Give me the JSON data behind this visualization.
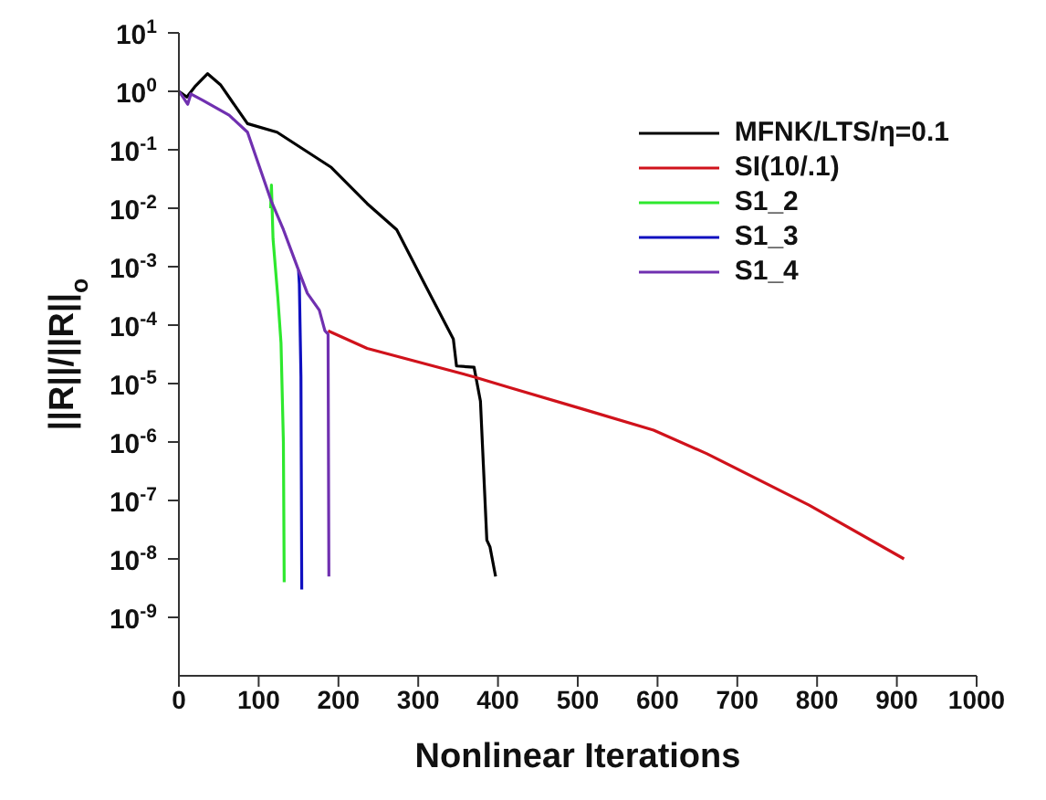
{
  "chart_data": {
    "type": "line",
    "xlabel": "Nonlinear Iterations",
    "ylabel": "||R||/||R||$_{o}$",
    "log": "y",
    "grid": false,
    "legend": "top right",
    "marker": "none",
    "line_style": "solid",
    "xlim": [
      0,
      1000
    ],
    "xticks": [
      0,
      100,
      200,
      300,
      400,
      500,
      600,
      700,
      800,
      900,
      1000
    ],
    "ylim": [
      1e-10,
      10
    ],
    "yticks": [
      {
        "value": 10,
        "label": "10$^{1}$"
      },
      {
        "value": 1,
        "label": "10$^{0}$"
      },
      {
        "value": 0.1,
        "label": "10$^{-1}$"
      },
      {
        "value": 0.01,
        "label": "10$^{-2}$"
      },
      {
        "value": 0.001,
        "label": "10$^{-3}$"
      },
      {
        "value": 0.0001,
        "label": "10$^{-4}$"
      },
      {
        "value": 1e-05,
        "label": "10$^{-5}$"
      },
      {
        "value": 1e-06,
        "label": "10$^{-6}$"
      },
      {
        "value": 1e-07,
        "label": "10$^{-7}$"
      },
      {
        "value": 1e-08,
        "label": "10$^{-8}$"
      },
      {
        "value": 1e-09,
        "label": "10$^{-9}$"
      }
    ],
    "series": [
      {
        "name": "MFNK/LTS/η=0.1",
        "color": "#000000",
        "x": [
          0,
          10,
          20,
          36,
          52,
          86,
          123,
          191,
          236,
          273,
          310,
          344,
          348,
          370,
          378,
          386,
          390,
          397
        ],
        "values": [
          1,
          0.8,
          1.2,
          2,
          1.3,
          0.28,
          0.2,
          0.05,
          0.012,
          0.0043,
          0.00045,
          5.8e-05,
          2e-05,
          1.9e-05,
          5e-06,
          2.1e-08,
          1.6e-08,
          5e-09
        ]
      },
      {
        "name": "SI(10/.1)",
        "color": "#d0121b",
        "x": [
          187,
          236,
          370,
          415,
          505,
          595,
          662,
          790,
          909
        ],
        "values": [
          8e-05,
          4e-05,
          1.3e-05,
          8.5e-06,
          3.7e-06,
          1.6e-06,
          6.3e-07,
          8.3e-08,
          1e-08
        ]
      },
      {
        "name": "S1_2",
        "color": "#2ee82e",
        "x": [
          115,
          116,
          118,
          124,
          128,
          131,
          132
        ],
        "values": [
          0.01,
          0.025,
          0.003,
          0.0003,
          5e-05,
          1e-06,
          4e-09
        ]
      },
      {
        "name": "S1_3",
        "color": "#1010c0",
        "x": [
          150,
          151,
          153,
          154
        ],
        "values": [
          0.00087,
          0.0005,
          1.3e-05,
          3e-09
        ]
      },
      {
        "name": "S1_4",
        "color": "#7030b0",
        "x": [
          0,
          5,
          11,
          15,
          30,
          63,
          86,
          116,
          131,
          150,
          161,
          176,
          183,
          187,
          188
        ],
        "values": [
          1,
          0.8,
          0.6,
          0.9,
          0.7,
          0.39,
          0.2,
          0.013,
          0.0043,
          0.00087,
          0.00035,
          0.00018,
          8e-05,
          7e-05,
          5e-09
        ]
      }
    ]
  }
}
